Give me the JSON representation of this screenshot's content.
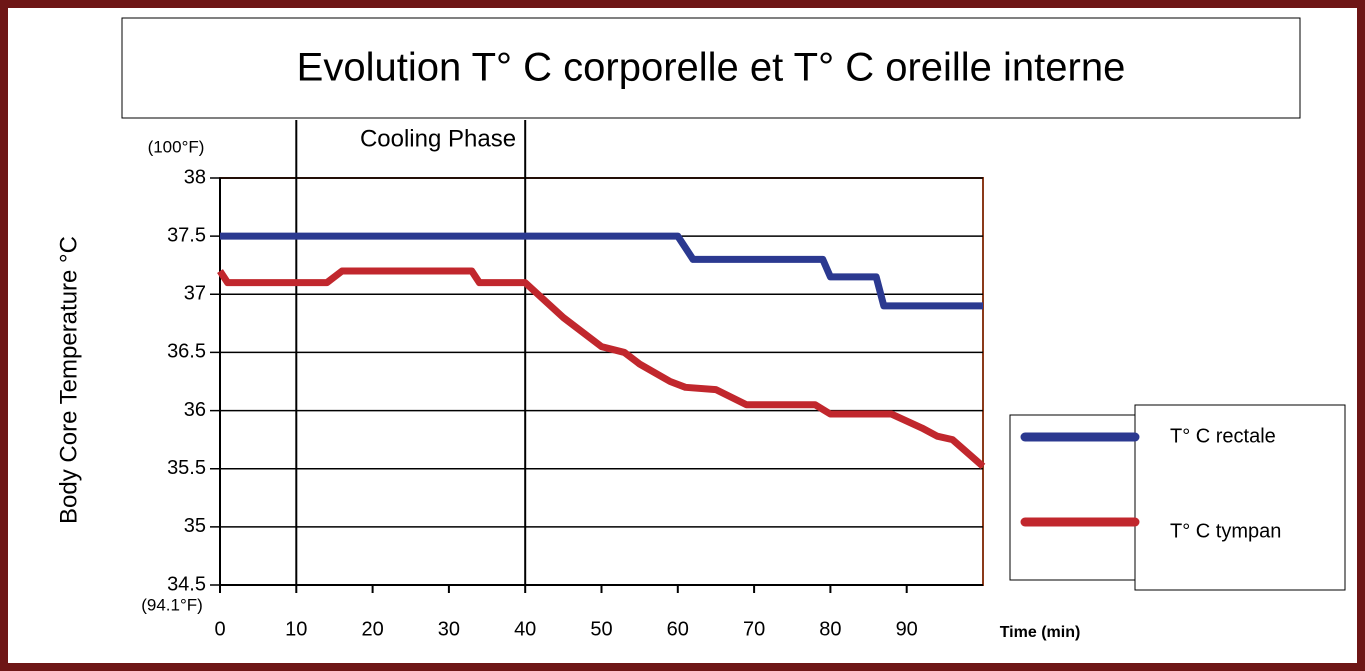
{
  "chart_data": {
    "type": "line",
    "title": "Evolution T° C corporelle et T° C oreille interne",
    "y_label": "Body Core Temperature °C",
    "x_label": "Time (min)",
    "y_top_note": "(100°F)",
    "y_bottom_note": "(94.1°F)",
    "annotation": "Cooling Phase",
    "phase_lines": [
      10,
      40
    ],
    "xlim": [
      0,
      100
    ],
    "xticks": [
      0,
      10,
      20,
      30,
      40,
      50,
      60,
      70,
      80,
      90
    ],
    "ylim": [
      34.5,
      38
    ],
    "yticks": [
      34.5,
      35,
      35.5,
      36,
      36.5,
      37,
      37.5,
      38
    ],
    "grid": true,
    "legend": "right",
    "series": [
      {
        "name": "T° C rectale",
        "color": "#2b3990",
        "x": [
          0,
          60,
          62,
          79,
          80,
          86,
          87,
          100
        ],
        "values": [
          37.5,
          37.5,
          37.3,
          37.3,
          37.15,
          37.15,
          36.9,
          36.9
        ]
      },
      {
        "name": "T° C tympan",
        "color": "#c1272d",
        "x": [
          0,
          1,
          14,
          16,
          33,
          34,
          40,
          45,
          50,
          53,
          55,
          59,
          61,
          65,
          69,
          78,
          80,
          88,
          92,
          94,
          96,
          100
        ],
        "values": [
          37.2,
          37.1,
          37.1,
          37.2,
          37.2,
          37.1,
          37.1,
          36.8,
          36.55,
          36.5,
          36.4,
          36.25,
          36.2,
          36.18,
          36.05,
          36.05,
          35.97,
          35.97,
          35.85,
          35.78,
          35.75,
          35.52
        ]
      }
    ]
  }
}
